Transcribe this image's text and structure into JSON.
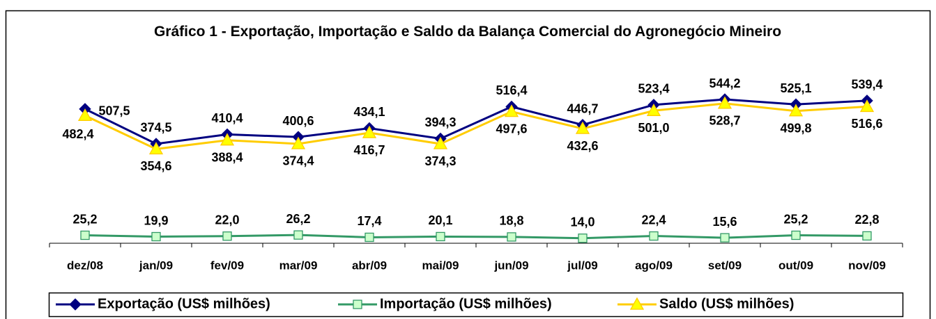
{
  "chart_data": {
    "type": "line",
    "title": "Gráfico 1 - Exportação, Importação e Saldo da Balança Comercial do Agronegócio Mineiro",
    "categories": [
      "dez/08",
      "jan/09",
      "fev/09",
      "mar/09",
      "abr/09",
      "mai/09",
      "jun/09",
      "jul/09",
      "ago/09",
      "set/09",
      "out/09",
      "nov/09"
    ],
    "ylim": [
      0,
      600
    ],
    "legend": "bottom",
    "series": [
      {
        "name": "Exportação (US$ milhões)",
        "color": "#000080",
        "marker": "diamond",
        "values": [
          507.5,
          374.5,
          410.4,
          400.6,
          434.1,
          394.3,
          516.4,
          446.7,
          523.4,
          544.2,
          525.1,
          539.4
        ],
        "value_labels": [
          "507,5",
          "374,5",
          "410,4",
          "400,6",
          "434,1",
          "394,3",
          "516,4",
          "446,7",
          "523,4",
          "544,2",
          "525,1",
          "539,4"
        ]
      },
      {
        "name": "Importação (US$ milhões)",
        "color": "#339966",
        "marker": "square",
        "values": [
          25.2,
          19.9,
          22.0,
          26.2,
          17.4,
          20.1,
          18.8,
          14.0,
          22.4,
          15.6,
          25.2,
          22.8
        ],
        "value_labels": [
          "25,2",
          "19,9",
          "22,0",
          "26,2",
          "17,4",
          "20,1",
          "18,8",
          "14,0",
          "22,4",
          "15,6",
          "25,2",
          "22,8"
        ]
      },
      {
        "name": "Saldo (US$ milhões)",
        "color": "#ffcc00",
        "marker": "triangle",
        "values": [
          482.4,
          354.6,
          388.4,
          374.4,
          416.7,
          374.3,
          497.6,
          432.6,
          501.0,
          528.7,
          499.8,
          516.6
        ],
        "value_labels": [
          "482,4",
          "354,6",
          "388,4",
          "374,4",
          "416,7",
          "374,3",
          "497,6",
          "432,6",
          "501,0",
          "528,7",
          "499,8",
          "516,6"
        ]
      }
    ]
  }
}
